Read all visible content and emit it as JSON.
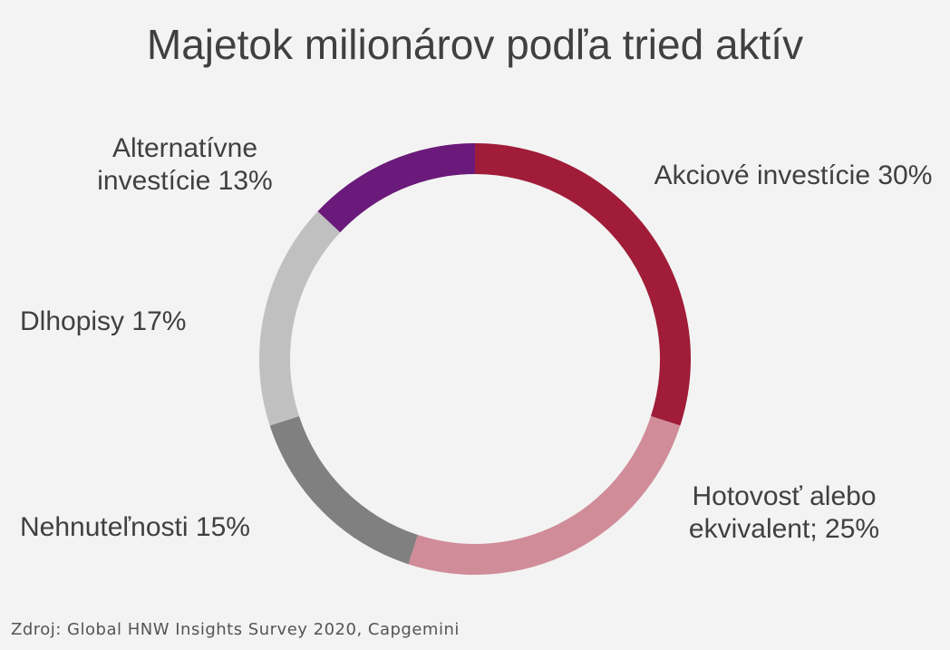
{
  "chart_data": {
    "type": "donut",
    "title": "Majetok milionárov podľa tried aktív",
    "categories": [
      "Akciové investície",
      "Hotovosť alebo ekvivalent;",
      "Nehnuteľnosti",
      "Dlhopisy",
      "Alternatívne investície"
    ],
    "values": [
      30,
      25,
      15,
      17,
      13
    ],
    "value_labels": [
      "30%",
      "25%",
      "15%",
      "17%",
      "13%"
    ],
    "colors": [
      "#a01c38",
      "#d08c98",
      "#808080",
      "#c0c0c0",
      "#6a1a7a"
    ],
    "source": "Zdroj: Global HNW Insights Survey 2020, Capgemini"
  }
}
